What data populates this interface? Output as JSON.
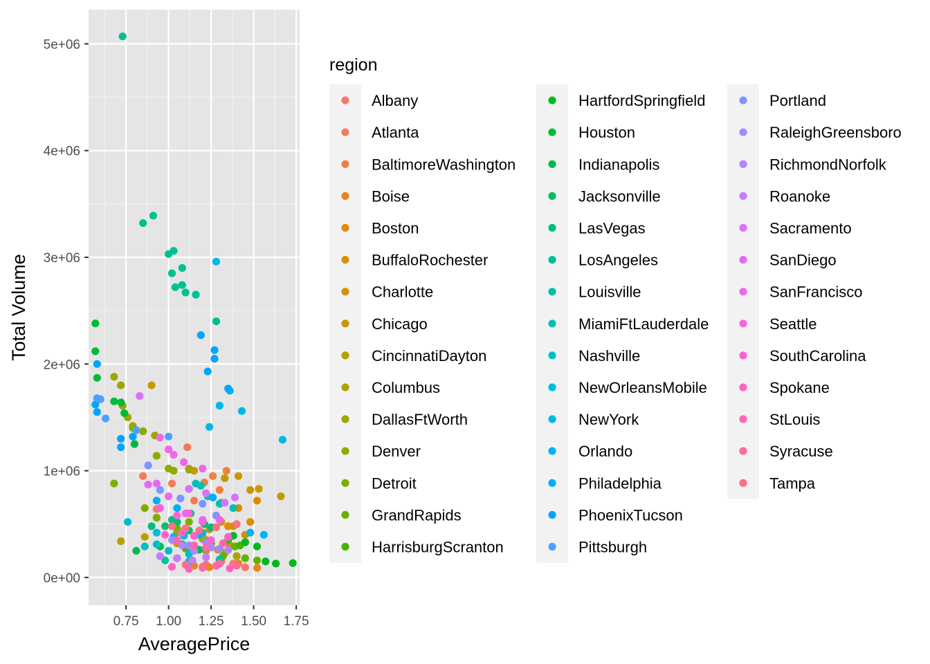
{
  "chart_data": {
    "type": "scatter",
    "title": "",
    "xlabel": "AveragePrice",
    "ylabel": "Total Volume",
    "xlim": [
      0.53,
      1.77
    ],
    "ylim": [
      -260000,
      5320000
    ],
    "x_ticks": [
      0.75,
      1.0,
      1.25,
      1.5,
      1.75
    ],
    "x_tick_labels": [
      "0.75",
      "1.00",
      "1.25",
      "1.50",
      "1.75"
    ],
    "y_ticks": [
      0,
      1000000,
      2000000,
      3000000,
      4000000,
      5000000
    ],
    "y_tick_labels": [
      "0e+00",
      "1e+06",
      "2e+06",
      "3e+06",
      "4e+06",
      "5e+06"
    ],
    "grid": true,
    "panel_background": "#e5e5e5",
    "legend": {
      "title": "region",
      "position": "right",
      "columns": 3
    },
    "series": [
      {
        "name": "Albany",
        "color": "#F8766D",
        "points": [
          [
            1.22,
            120000
          ],
          [
            1.31,
            150000
          ],
          [
            1.45,
            95000
          ],
          [
            1.05,
            180000
          ],
          [
            1.38,
            130000
          ]
        ]
      },
      {
        "name": "Atlanta",
        "color": "#F37B59",
        "points": [
          [
            0.85,
            950000
          ],
          [
            1.02,
            880000
          ],
          [
            1.11,
            1220000
          ],
          [
            1.15,
            720000
          ],
          [
            0.93,
            640000
          ]
        ]
      },
      {
        "name": "BaltimoreWashington",
        "color": "#ED8141",
        "points": [
          [
            1.12,
            1020000
          ],
          [
            1.21,
            890000
          ],
          [
            1.26,
            950000
          ],
          [
            1.34,
            1000000
          ],
          [
            1.3,
            820000
          ]
        ]
      },
      {
        "name": "Boise",
        "color": "#E7861B",
        "points": [
          [
            1.15,
            110000
          ],
          [
            1.24,
            95000
          ],
          [
            1.41,
            130000
          ],
          [
            1.52,
            90000
          ],
          [
            1.3,
            150000
          ]
        ]
      },
      {
        "name": "Boston",
        "color": "#E08B00",
        "points": [
          [
            1.31,
            700000
          ],
          [
            1.41,
            650000
          ],
          [
            1.48,
            520000
          ],
          [
            1.52,
            720000
          ],
          [
            1.35,
            480000
          ]
        ]
      },
      {
        "name": "BuffaloRochester",
        "color": "#D89000",
        "points": [
          [
            1.05,
            320000
          ],
          [
            1.13,
            280000
          ],
          [
            1.22,
            350000
          ],
          [
            1.29,
            260000
          ],
          [
            1.36,
            300000
          ]
        ]
      },
      {
        "name": "Charlotte",
        "color": "#CF9400",
        "points": [
          [
            1.24,
            450000
          ],
          [
            1.31,
            520000
          ],
          [
            1.38,
            480000
          ],
          [
            1.45,
            400000
          ],
          [
            1.2,
            380000
          ]
        ]
      },
      {
        "name": "Chicago",
        "color": "#C49A00",
        "points": [
          [
            0.9,
            1800000
          ],
          [
            1.15,
            1000000
          ],
          [
            1.33,
            930000
          ],
          [
            1.41,
            950000
          ],
          [
            1.48,
            820000
          ],
          [
            1.53,
            830000
          ],
          [
            1.66,
            760000
          ]
        ]
      },
      {
        "name": "CincinnatiDayton",
        "color": "#B79F00",
        "points": [
          [
            0.72,
            340000
          ],
          [
            0.86,
            380000
          ],
          [
            1.05,
            420000
          ],
          [
            1.2,
            360000
          ]
        ]
      },
      {
        "name": "Columbus",
        "color": "#AAA300",
        "points": [
          [
            1.22,
            250000
          ],
          [
            1.33,
            230000
          ],
          [
            1.4,
            200000
          ],
          [
            1.1,
            270000
          ]
        ]
      },
      {
        "name": "DallasFtWorth",
        "color": "#9DA700",
        "points": [
          [
            0.68,
            1880000
          ],
          [
            0.72,
            1800000
          ],
          [
            0.76,
            1500000
          ],
          [
            0.79,
            1420000
          ],
          [
            0.92,
            1330000
          ],
          [
            1.0,
            1020000
          ],
          [
            1.12,
            1010000
          ]
        ]
      },
      {
        "name": "Denver",
        "color": "#8EAB00",
        "points": [
          [
            0.73,
            1610000
          ],
          [
            0.79,
            1400000
          ],
          [
            0.85,
            1370000
          ],
          [
            0.93,
            1140000
          ],
          [
            1.03,
            1000000
          ]
        ]
      },
      {
        "name": "Detroit",
        "color": "#7CAE00",
        "points": [
          [
            0.68,
            880000
          ],
          [
            0.86,
            650000
          ],
          [
            0.93,
            560000
          ],
          [
            1.05,
            460000
          ],
          [
            1.12,
            520000
          ]
        ]
      },
      {
        "name": "GrandRapids",
        "color": "#64B200",
        "points": [
          [
            1.32,
            200000
          ],
          [
            1.45,
            180000
          ],
          [
            1.52,
            160000
          ],
          [
            1.39,
            290000
          ]
        ]
      },
      {
        "name": "HarrisburgScranton",
        "color": "#45B500",
        "points": [
          [
            1.1,
            280000
          ],
          [
            1.25,
            320000
          ],
          [
            1.35,
            350000
          ],
          [
            1.42,
            300000
          ]
        ]
      },
      {
        "name": "HartfordSpringfield",
        "color": "#00B81F",
        "points": [
          [
            1.38,
            390000
          ],
          [
            1.45,
            330000
          ],
          [
            1.52,
            290000
          ],
          [
            1.57,
            150000
          ],
          [
            1.63,
            130000
          ],
          [
            1.73,
            135000
          ]
        ]
      },
      {
        "name": "Houston",
        "color": "#00BA38",
        "points": [
          [
            0.57,
            2380000
          ],
          [
            0.57,
            2120000
          ],
          [
            0.58,
            1870000
          ],
          [
            0.68,
            1650000
          ],
          [
            0.72,
            1640000
          ],
          [
            0.74,
            1540000
          ],
          [
            0.8,
            1250000
          ]
        ]
      },
      {
        "name": "Indianapolis",
        "color": "#00BC4F",
        "points": [
          [
            0.81,
            250000
          ],
          [
            0.95,
            290000
          ],
          [
            1.08,
            310000
          ],
          [
            1.18,
            260000
          ]
        ]
      },
      {
        "name": "Jacksonville",
        "color": "#00BE67",
        "points": [
          [
            0.98,
            480000
          ],
          [
            1.05,
            520000
          ],
          [
            1.12,
            440000
          ],
          [
            1.21,
            500000
          ]
        ]
      },
      {
        "name": "LasVegas",
        "color": "#00BF7D",
        "points": [
          [
            0.9,
            480000
          ],
          [
            1.02,
            540000
          ],
          [
            1.13,
            600000
          ],
          [
            1.25,
            470000
          ]
        ]
      },
      {
        "name": "LosAngeles",
        "color": "#00C091",
        "points": [
          [
            0.73,
            5070000
          ],
          [
            0.85,
            3320000
          ],
          [
            0.91,
            3390000
          ],
          [
            1.0,
            3030000
          ],
          [
            1.03,
            3060000
          ],
          [
            1.02,
            2850000
          ],
          [
            1.04,
            2720000
          ],
          [
            1.08,
            2900000
          ],
          [
            1.08,
            2740000
          ],
          [
            1.1,
            2670000
          ],
          [
            1.16,
            2650000
          ],
          [
            1.28,
            2400000
          ]
        ]
      },
      {
        "name": "Louisville",
        "color": "#00C1A3",
        "points": [
          [
            0.98,
            160000
          ],
          [
            1.05,
            180000
          ],
          [
            1.12,
            150000
          ],
          [
            1.3,
            170000
          ]
        ]
      },
      {
        "name": "MiamiFtLauderdale",
        "color": "#00C0B6",
        "points": [
          [
            1.16,
            880000
          ],
          [
            1.19,
            860000
          ],
          [
            1.23,
            760000
          ],
          [
            1.3,
            690000
          ],
          [
            1.38,
            650000
          ]
        ]
      },
      {
        "name": "Nashville",
        "color": "#00BEC7",
        "points": [
          [
            0.86,
            290000
          ],
          [
            0.93,
            310000
          ],
          [
            1.0,
            250000
          ],
          [
            1.12,
            220000
          ]
        ]
      },
      {
        "name": "NewOrleansMobile",
        "color": "#00BCD8",
        "points": [
          [
            0.76,
            520000
          ],
          [
            0.93,
            420000
          ],
          [
            1.09,
            390000
          ],
          [
            1.2,
            420000
          ]
        ]
      },
      {
        "name": "NewYork",
        "color": "#00B8E7",
        "points": [
          [
            1.28,
            2960000
          ],
          [
            1.36,
            1750000
          ],
          [
            1.3,
            1610000
          ],
          [
            1.24,
            1410000
          ],
          [
            1.67,
            1290000
          ],
          [
            1.43,
            1560000
          ]
        ]
      },
      {
        "name": "Orlando",
        "color": "#00B3F4",
        "points": [
          [
            1.03,
            380000
          ],
          [
            1.1,
            450000
          ],
          [
            1.18,
            400000
          ],
          [
            1.48,
            420000
          ],
          [
            1.56,
            400000
          ]
        ]
      },
      {
        "name": "Philadelphia",
        "color": "#00ADFA",
        "points": [
          [
            0.93,
            720000
          ],
          [
            1.05,
            650000
          ],
          [
            1.12,
            830000
          ],
          [
            1.26,
            750000
          ]
        ]
      },
      {
        "name": "PhoenixTucson",
        "color": "#00A5FF",
        "points": [
          [
            1.19,
            2270000
          ],
          [
            1.27,
            2130000
          ],
          [
            1.27,
            2050000
          ],
          [
            1.23,
            1930000
          ],
          [
            1.35,
            1770000
          ],
          [
            0.58,
            2000000
          ],
          [
            0.57,
            1620000
          ],
          [
            0.58,
            1550000
          ],
          [
            0.72,
            1300000
          ],
          [
            0.72,
            1220000
          ],
          [
            0.79,
            1320000
          ]
        ]
      },
      {
        "name": "Pittsburgh",
        "color": "#529EFF",
        "points": [
          [
            0.58,
            1680000
          ],
          [
            0.6,
            1670000
          ],
          [
            0.63,
            1490000
          ],
          [
            0.81,
            1380000
          ],
          [
            1.0,
            1320000
          ]
        ]
      },
      {
        "name": "Portland",
        "color": "#7C96FF",
        "points": [
          [
            0.88,
            1050000
          ],
          [
            0.95,
            820000
          ],
          [
            1.07,
            740000
          ],
          [
            1.2,
            690000
          ],
          [
            1.28,
            580000
          ]
        ]
      },
      {
        "name": "RaleighGreensboro",
        "color": "#9A8FFF",
        "points": [
          [
            1.02,
            350000
          ],
          [
            1.12,
            300000
          ],
          [
            1.22,
            330000
          ],
          [
            1.3,
            270000
          ]
        ]
      },
      {
        "name": "RichmondNorfolk",
        "color": "#B385FF",
        "points": [
          [
            1.08,
            300000
          ],
          [
            1.15,
            250000
          ],
          [
            1.25,
            280000
          ],
          [
            1.35,
            260000
          ]
        ]
      },
      {
        "name": "Roanoke",
        "color": "#C77CFF",
        "points": [
          [
            0.95,
            200000
          ],
          [
            1.05,
            180000
          ],
          [
            1.14,
            160000
          ],
          [
            1.22,
            190000
          ]
        ]
      },
      {
        "name": "Sacramento",
        "color": "#D772FA",
        "points": [
          [
            0.83,
            1700000
          ],
          [
            1.12,
            830000
          ],
          [
            1.22,
            790000
          ],
          [
            1.33,
            700000
          ],
          [
            1.39,
            750000
          ]
        ]
      },
      {
        "name": "SanDiego",
        "color": "#E56AF3",
        "points": [
          [
            0.88,
            870000
          ],
          [
            0.93,
            880000
          ],
          [
            1.0,
            760000
          ],
          [
            1.1,
            600000
          ],
          [
            1.2,
            540000
          ]
        ]
      },
      {
        "name": "SanFrancisco",
        "color": "#F066E9",
        "points": [
          [
            0.95,
            1310000
          ],
          [
            1.0,
            1200000
          ],
          [
            1.03,
            1150000
          ],
          [
            1.09,
            1080000
          ],
          [
            1.2,
            1020000
          ]
        ]
      },
      {
        "name": "Seattle",
        "color": "#F863DD",
        "points": [
          [
            0.95,
            650000
          ],
          [
            1.05,
            580000
          ],
          [
            1.12,
            600000
          ],
          [
            1.2,
            520000
          ],
          [
            1.3,
            540000
          ]
        ]
      },
      {
        "name": "SouthCarolina",
        "color": "#FD61D0",
        "points": [
          [
            0.98,
            400000
          ],
          [
            1.08,
            420000
          ],
          [
            1.15,
            390000
          ],
          [
            1.25,
            350000
          ],
          [
            1.35,
            380000
          ]
        ]
      },
      {
        "name": "Spokane",
        "color": "#FF63C0",
        "points": [
          [
            1.02,
            100000
          ],
          [
            1.12,
            80000
          ],
          [
            1.2,
            90000
          ],
          [
            1.28,
            110000
          ],
          [
            1.36,
            85000
          ]
        ]
      },
      {
        "name": "StLouis",
        "color": "#FF66AF",
        "points": [
          [
            1.05,
            350000
          ],
          [
            1.15,
            300000
          ],
          [
            1.22,
            280000
          ],
          [
            1.32,
            320000
          ]
        ]
      },
      {
        "name": "Syracuse",
        "color": "#FF6A9B",
        "points": [
          [
            1.1,
            120000
          ],
          [
            1.2,
            100000
          ],
          [
            1.3,
            130000
          ],
          [
            1.4,
            110000
          ]
        ]
      },
      {
        "name": "Tampa",
        "color": "#FC7085",
        "points": [
          [
            1.02,
            480000
          ],
          [
            1.1,
            460000
          ],
          [
            1.18,
            440000
          ],
          [
            1.28,
            470000
          ],
          [
            1.4,
            500000
          ]
        ]
      }
    ]
  }
}
